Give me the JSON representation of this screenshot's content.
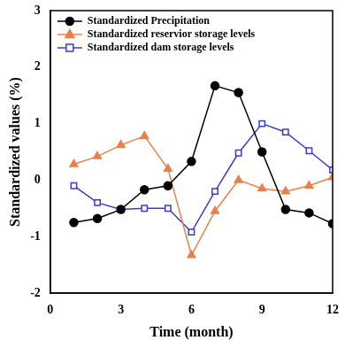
{
  "chart_data": {
    "type": "line",
    "x_label": "Time (month)",
    "y_label": "Standardized values (%)",
    "x": [
      1,
      2,
      3,
      4,
      5,
      6,
      7,
      8,
      9,
      10,
      11,
      12
    ],
    "series": [
      {
        "name": "Standardized Precipitation",
        "color": "#000000",
        "marker": "circle",
        "values": [
          -0.75,
          -0.68,
          -0.52,
          -0.17,
          -0.1,
          0.33,
          1.67,
          1.55,
          0.5,
          -0.52,
          -0.58,
          -0.77
        ]
      },
      {
        "name": "Standardized reservior storage levels",
        "color": "#e8804a",
        "marker": "triangle",
        "values": [
          0.28,
          0.42,
          0.62,
          0.78,
          0.2,
          -1.33,
          -0.55,
          0.0,
          -0.15,
          -0.2,
          -0.1,
          0.05
        ]
      },
      {
        "name": "Standardized dam storage levels",
        "color": "#3b3bd0",
        "marker": "open_square",
        "values": [
          -0.1,
          -0.4,
          -0.52,
          -0.5,
          -0.5,
          -0.92,
          -0.2,
          0.48,
          1.0,
          0.85,
          0.52,
          0.18
        ]
      }
    ],
    "xlim": [
      0,
      12
    ],
    "xticks": [
      0,
      3,
      6,
      9,
      12
    ],
    "ylim": [
      -2,
      3
    ],
    "yticks": [
      -2,
      -1,
      0,
      1,
      2,
      3
    ],
    "grid": false,
    "legend": "upper left"
  }
}
